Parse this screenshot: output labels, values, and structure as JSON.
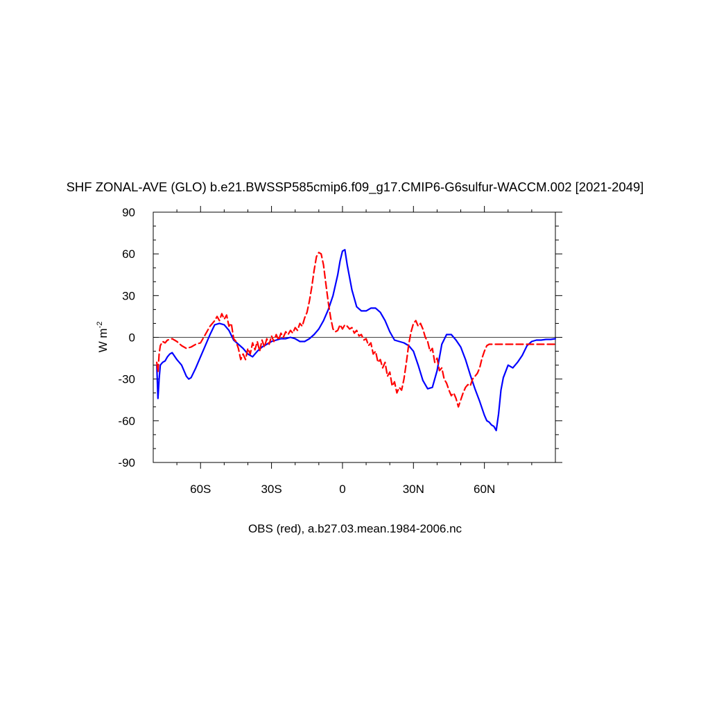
{
  "chart_data": {
    "type": "line",
    "title": "SHF ZONAL-AVE (GLO) b.e21.BWSSP585cmip6.f09_g17.CMIP6-G6sulfur-WACCM.002 [2021-2049]",
    "ylabel_base": "W m",
    "ylabel_exp": "-2",
    "footer": "OBS (red), a.b27.03.mean.1984-2006.nc",
    "xlim": [
      -80,
      90
    ],
    "ylim": [
      -90,
      90
    ],
    "yticks": [
      -90,
      -60,
      -30,
      0,
      30,
      60,
      90
    ],
    "ytick_labels": [
      "-90",
      "-60",
      "-30",
      "0",
      "30",
      "60",
      "90"
    ],
    "xticks": [
      -60,
      -30,
      0,
      30,
      60
    ],
    "xtick_labels": [
      "60S",
      "30S",
      "0",
      "30N",
      "60N"
    ],
    "zero_line": true,
    "grid": false,
    "series": [
      {
        "color": "#0000ff",
        "dash": "solid",
        "x": [
          -78.5,
          -78,
          -77.5,
          -77,
          -76,
          -75,
          -74,
          -73,
          -72,
          -70,
          -68,
          -66,
          -65,
          -64,
          -62,
          -60,
          -58,
          -56,
          -54,
          -52,
          -50,
          -48,
          -46,
          -44,
          -42,
          -40,
          -38,
          -36,
          -34,
          -32,
          -30,
          -28,
          -26,
          -24,
          -22,
          -20,
          -18,
          -16,
          -14,
          -12,
          -10,
          -8,
          -6,
          -4,
          -2,
          -1,
          0,
          1,
          2,
          4,
          6,
          8,
          10,
          12,
          14,
          16,
          18,
          20,
          22,
          24,
          26,
          28,
          30,
          32,
          34,
          36,
          38,
          40,
          42,
          44,
          46,
          48,
          50,
          52,
          54,
          56,
          58,
          60,
          61,
          62,
          63,
          64,
          65,
          66,
          67,
          68,
          70,
          72,
          74,
          76,
          78,
          80,
          82,
          84,
          86,
          88,
          90
        ],
        "y": [
          -20,
          -44,
          -30,
          -20,
          -18,
          -17,
          -14,
          -12,
          -11,
          -16,
          -20,
          -28,
          -30,
          -29,
          -22,
          -14,
          -6,
          2,
          9,
          10,
          9,
          5,
          -2,
          -5,
          -8,
          -12,
          -14,
          -10,
          -7,
          -5,
          -3,
          -2,
          -1,
          -1,
          0,
          -1,
          -3,
          -3,
          -1,
          2,
          6,
          12,
          20,
          30,
          45,
          55,
          62,
          63,
          52,
          34,
          22,
          19,
          19,
          21,
          21,
          18,
          12,
          4,
          -2,
          -3,
          -4,
          -6,
          -10,
          -20,
          -31,
          -37,
          -36,
          -24,
          -5,
          2,
          2,
          -2,
          -7,
          -16,
          -27,
          -37,
          -46,
          -56,
          -60,
          -61,
          -63,
          -64,
          -67,
          -55,
          -38,
          -29,
          -20,
          -22,
          -18,
          -13,
          -6,
          -3,
          -2,
          -2,
          -1.5,
          -1.5,
          -1
        ]
      },
      {
        "color": "#ff0000",
        "dash": "dashed",
        "x": [
          -78.5,
          -78,
          -77.5,
          -77,
          -76,
          -75,
          -74,
          -72,
          -70,
          -68,
          -66,
          -64,
          -62,
          -60,
          -58,
          -56,
          -54,
          -53,
          -52,
          -51,
          -50,
          -49,
          -48,
          -47,
          -46,
          -45,
          -44,
          -43,
          -42,
          -41,
          -40,
          -39,
          -38,
          -37,
          -36,
          -35,
          -34,
          -33,
          -32,
          -31,
          -30,
          -29,
          -28,
          -27,
          -26,
          -25,
          -24,
          -23,
          -22,
          -21,
          -20,
          -19,
          -18,
          -17,
          -16,
          -15,
          -14,
          -13,
          -12,
          -11,
          -10,
          -9,
          -8,
          -7,
          -6,
          -5,
          -4,
          -3,
          -2,
          -1,
          0,
          1,
          2,
          3,
          4,
          5,
          6,
          7,
          8,
          9,
          10,
          11,
          12,
          13,
          14,
          15,
          16,
          17,
          18,
          19,
          20,
          21,
          22,
          23,
          24,
          25,
          26,
          27,
          28,
          29,
          30,
          31,
          32,
          33,
          34,
          35,
          36,
          37,
          38,
          39,
          40,
          41,
          42,
          43,
          44,
          45,
          46,
          47,
          48,
          49,
          50,
          51,
          52,
          53,
          54,
          55,
          56,
          57,
          58,
          59,
          60,
          61,
          62,
          63,
          64,
          65,
          66,
          67,
          68,
          70,
          72,
          74,
          76,
          78,
          80,
          82,
          84,
          86,
          88,
          90
        ],
        "y": [
          -18,
          -25,
          -12,
          -6,
          -3,
          -4,
          -2,
          -1,
          -3,
          -6,
          -8,
          -7,
          -5,
          -4,
          2,
          8,
          12,
          15,
          12,
          17,
          13,
          16,
          8,
          10,
          -1,
          -3,
          -8,
          -16,
          -12,
          -16,
          -8,
          -12,
          -4,
          -9,
          -3,
          -10,
          -2,
          -7,
          -1,
          -5,
          1,
          -3,
          2,
          -2,
          3,
          0,
          4,
          2,
          5,
          3,
          7,
          5,
          10,
          8,
          14,
          18,
          26,
          36,
          48,
          58,
          61,
          60,
          52,
          38,
          25,
          14,
          6,
          4,
          5,
          9,
          6,
          9,
          8,
          6,
          7,
          3,
          5,
          1,
          2,
          -2,
          -1,
          -6,
          -4,
          -12,
          -10,
          -18,
          -16,
          -22,
          -18,
          -28,
          -25,
          -35,
          -32,
          -40,
          -36,
          -38,
          -30,
          -18,
          -5,
          4,
          10,
          12,
          8,
          10,
          6,
          0,
          -3,
          -10,
          -8,
          -18,
          -15,
          -24,
          -22,
          -30,
          -33,
          -38,
          -42,
          -40,
          -44,
          -50,
          -45,
          -40,
          -36,
          -34,
          -35,
          -30,
          -28,
          -26,
          -22,
          -15,
          -10,
          -6,
          -5,
          -5,
          -5,
          -5,
          -5,
          -5,
          -5,
          -5,
          -5,
          -5,
          -5,
          -5,
          -5,
          -5,
          -5,
          -5,
          -5,
          -5
        ]
      }
    ]
  }
}
